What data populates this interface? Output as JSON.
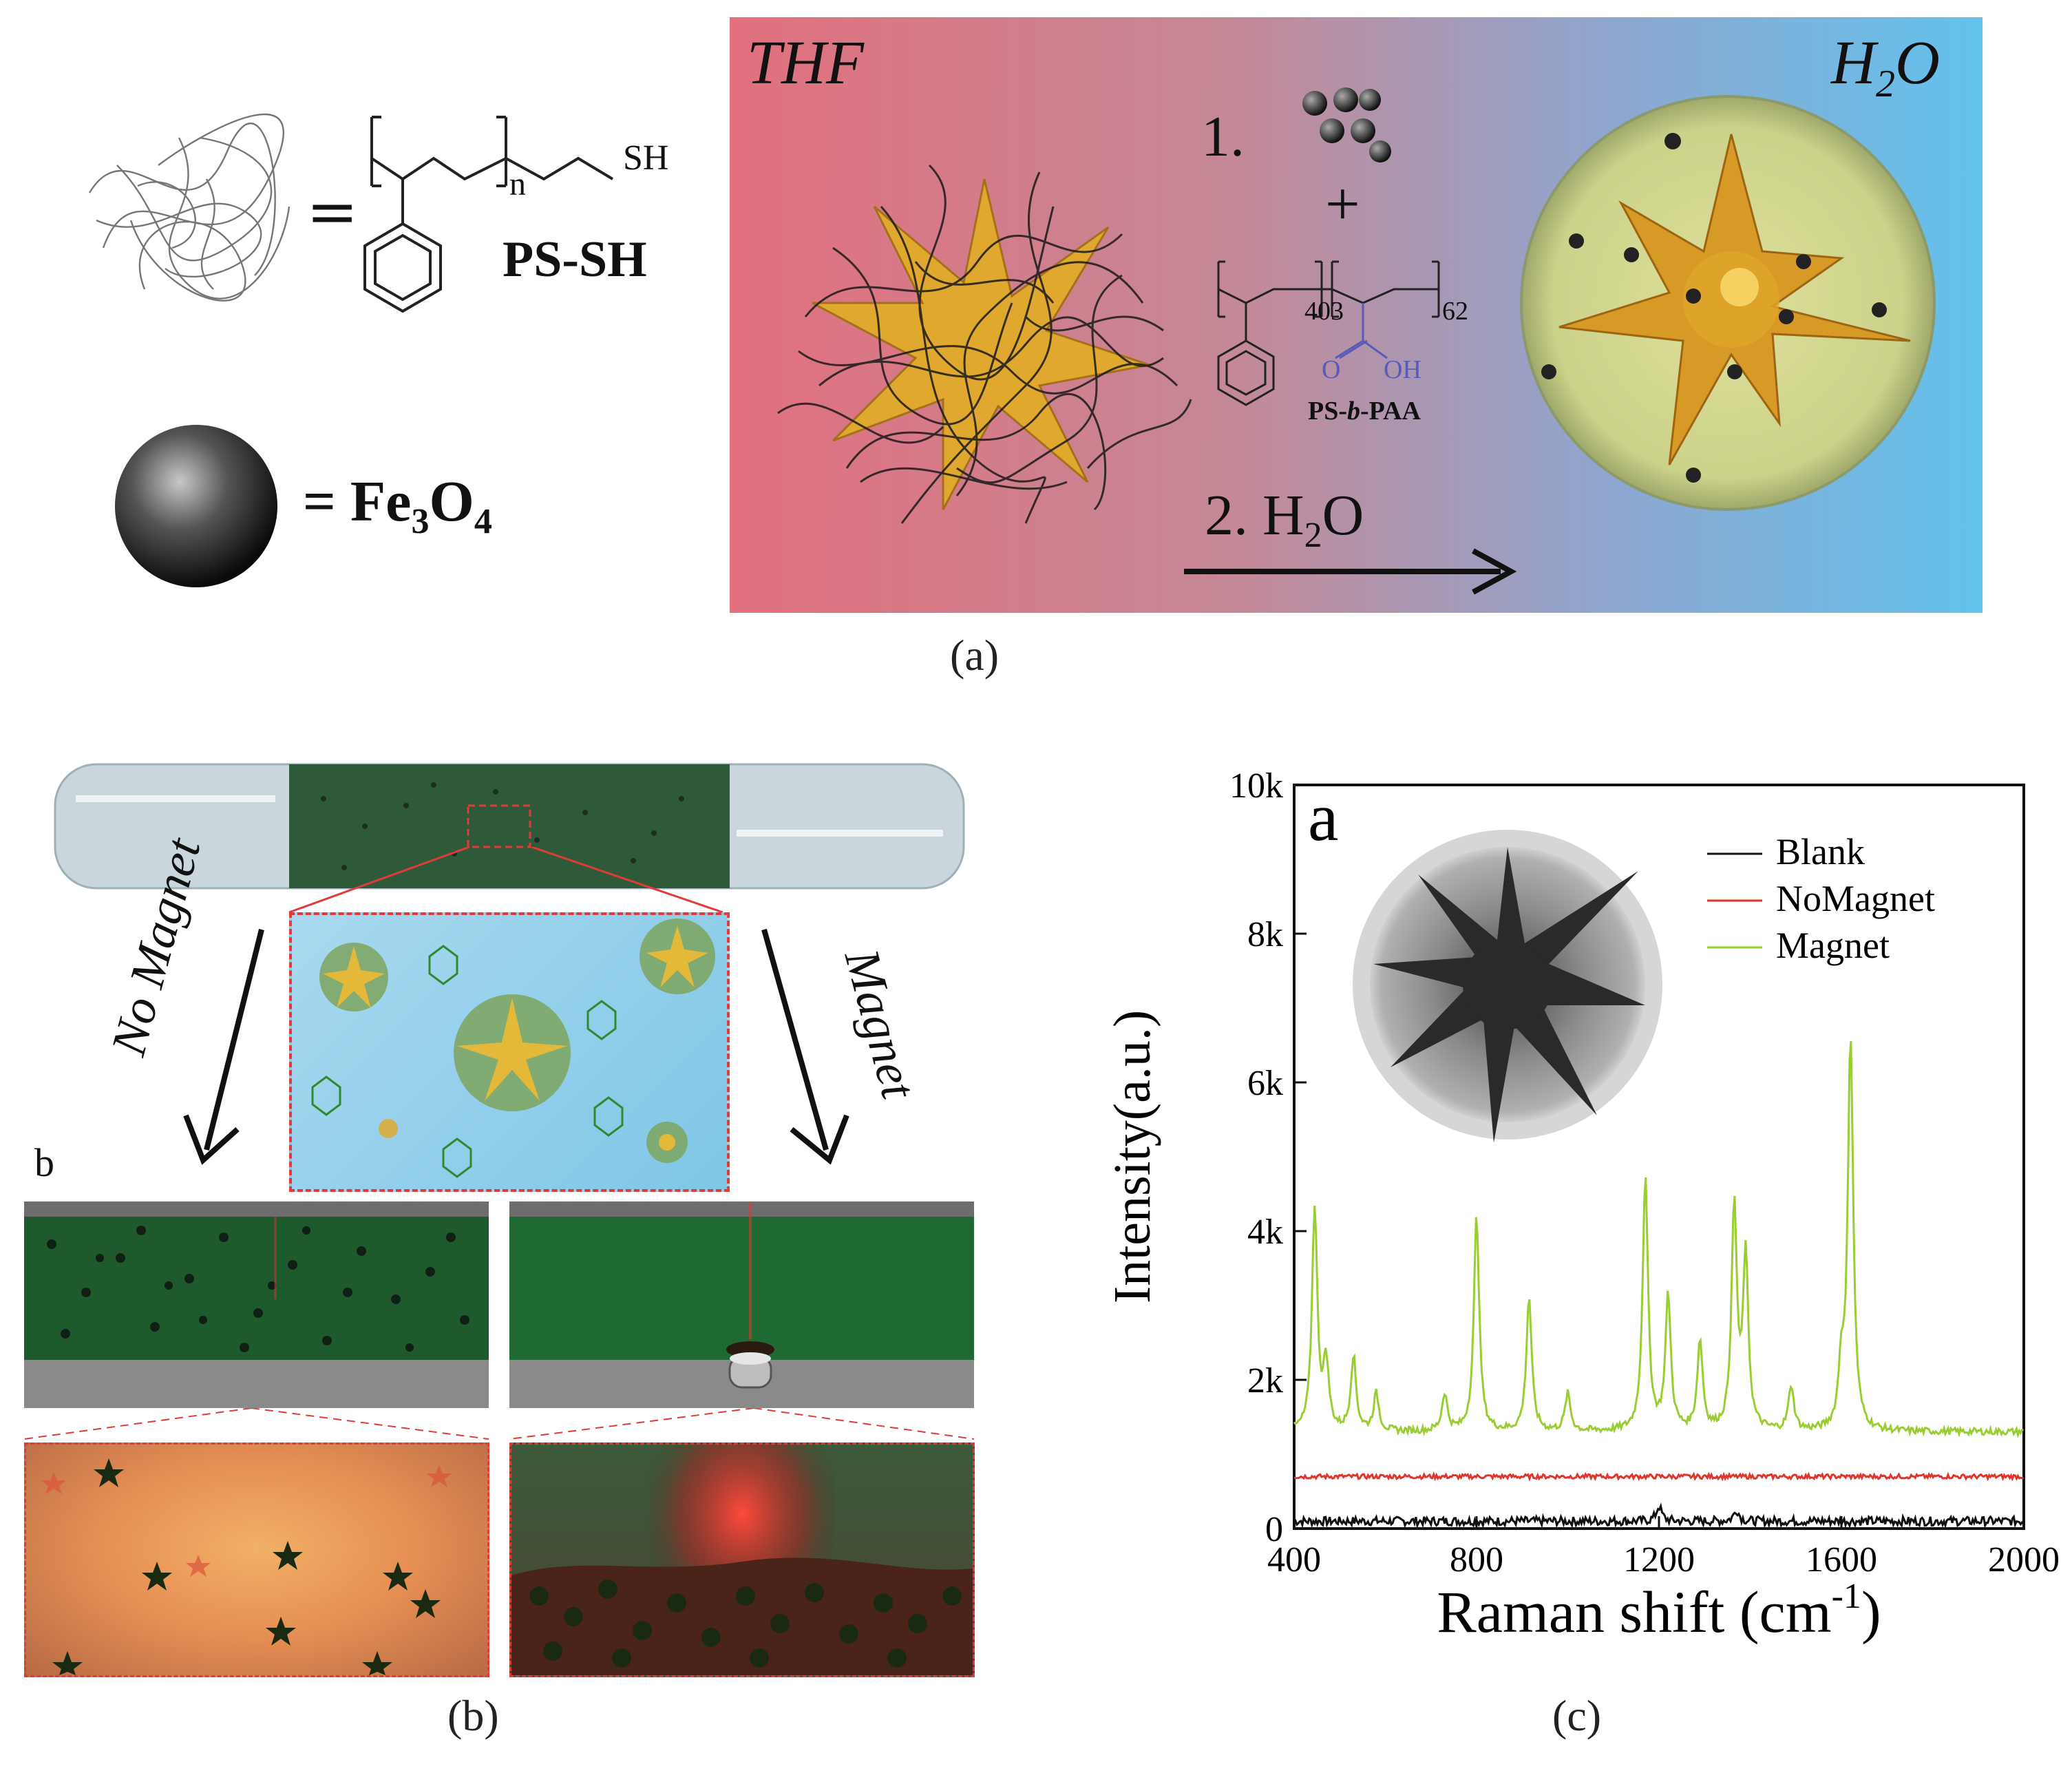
{
  "panel_a": {
    "label": "(a)",
    "ps_sh": {
      "n": "n",
      "sh": "SH",
      "name": "PS-SH"
    },
    "fe3o4": {
      "eq": "= ",
      "formula": "Fe",
      "sub3": "3",
      "o": "O",
      "sub4": "4"
    },
    "solvent_left": "THF",
    "solvent_right_h": "H",
    "solvent_right_sub": "2",
    "solvent_right_o": "O",
    "step1": "1.",
    "plus": "+",
    "copolymer": {
      "n1": "403",
      "n2": "62",
      "o": "O",
      "oh": "OH",
      "name_ps": "PS-",
      "name_b": "b",
      "name_paa": "-PAA"
    },
    "step2": {
      "prefix": "2. H",
      "sub": "2",
      "suffix": "O"
    }
  },
  "panel_b": {
    "label": "(b)",
    "no_magnet": "No Magnet",
    "magnet": "Magnet",
    "sub_label": "b"
  },
  "panel_c": {
    "label": "(c)",
    "inset_label": "a",
    "chart_data": {
      "type": "line",
      "title": "",
      "xlabel": "Raman shift (cm",
      "xlabel_sup": "-1",
      "xlabel_end": ")",
      "ylabel": "Intensity(a.u.)",
      "xlim": [
        400,
        2000
      ],
      "ylim": [
        0,
        10000
      ],
      "xticks": [
        400,
        800,
        1200,
        1600,
        2000
      ],
      "yticks": [
        0,
        2000,
        4000,
        6000,
        8000,
        10000
      ],
      "ytick_labels": [
        "0",
        "2k",
        "4k",
        "6k",
        "8k",
        "10k"
      ],
      "legend_position": "top-right",
      "series": [
        {
          "name": "Blank",
          "color": "#111111",
          "baseline": 100,
          "noise": 120,
          "peaks": [
            [
              1200,
              200
            ],
            [
              1370,
              150
            ]
          ]
        },
        {
          "name": "NoMagnet",
          "color": "#e0352b",
          "baseline": 700,
          "noise": 60,
          "peaks": []
        },
        {
          "name": "Magnet",
          "color": "#9acd32",
          "baseline": 1300,
          "noise": 90,
          "peaks": [
            [
              445,
              3000
            ],
            [
              470,
              900
            ],
            [
              530,
              1000
            ],
            [
              580,
              500
            ],
            [
              730,
              500
            ],
            [
              800,
              2900
            ],
            [
              915,
              1800
            ],
            [
              1000,
              500
            ],
            [
              1170,
              3400
            ],
            [
              1220,
              1800
            ],
            [
              1290,
              1200
            ],
            [
              1365,
              3000
            ],
            [
              1390,
              2300
            ],
            [
              1490,
              600
            ],
            [
              1600,
              800
            ],
            [
              1620,
              5300
            ]
          ]
        }
      ]
    }
  }
}
